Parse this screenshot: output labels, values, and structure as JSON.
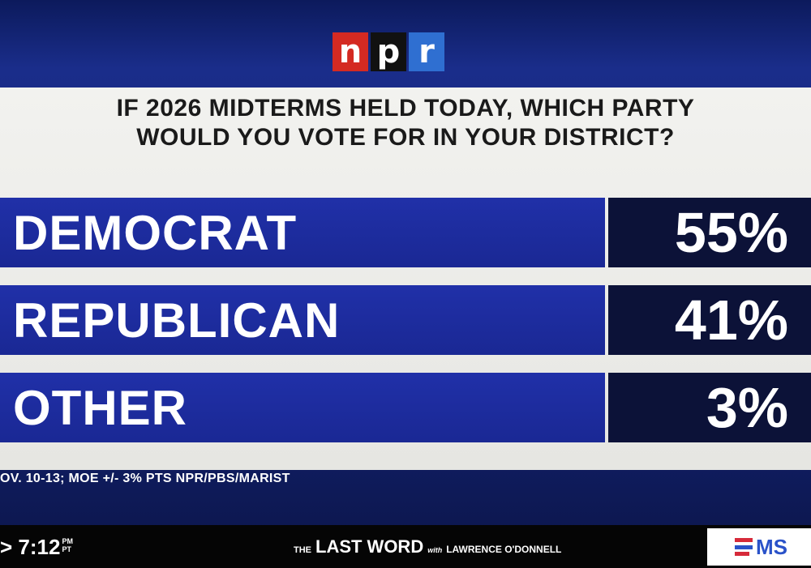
{
  "logo": {
    "letters": [
      "n",
      "p",
      "r"
    ]
  },
  "question": {
    "line1": "IF 2026 MIDTERMS HELD TODAY, WHICH PARTY",
    "line2": "WOULD YOU VOTE FOR IN YOUR DISTRICT?"
  },
  "results": [
    {
      "label": "DEMOCRAT",
      "value": "55%"
    },
    {
      "label": "REPUBLICAN",
      "value": "41%"
    },
    {
      "label": "OTHER",
      "value": "3%"
    }
  ],
  "source": "OV. 10-13; MOE +/- 3% PTS NPR/PBS/MARIST",
  "ticker": {
    "clock": "> 7:12",
    "ampm_top": "PM",
    "ampm_bottom": "PT",
    "show_the": "THE",
    "show_main": "LAST WORD",
    "show_with": "with",
    "show_host": "LAWRENCE O'DONNELL",
    "network": "MS"
  },
  "colors": {
    "bar_blue": "#1f2fa3",
    "value_navy": "#0c1238",
    "npr_red": "#d42a22",
    "npr_black": "#111111",
    "npr_blue": "#2f6fd1"
  }
}
